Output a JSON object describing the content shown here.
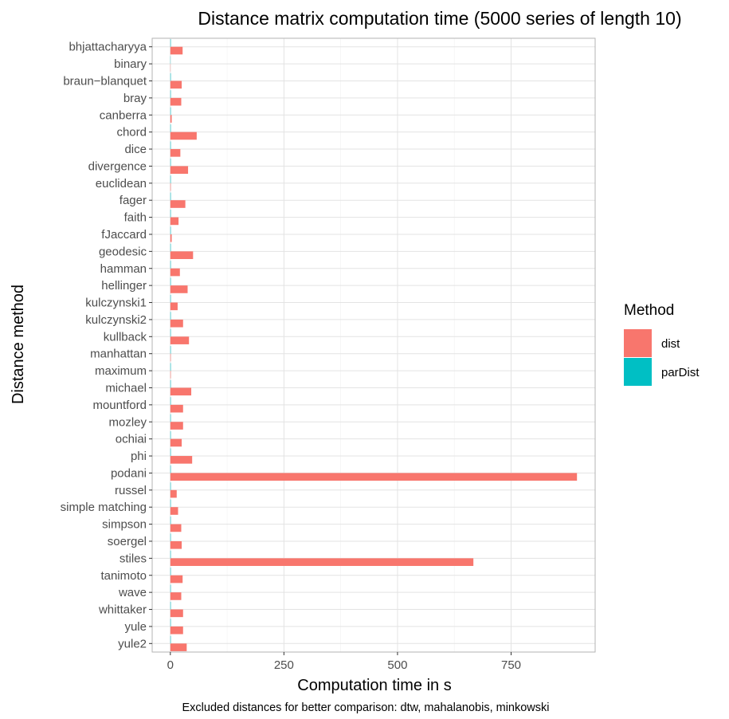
{
  "chart_data": {
    "type": "bar",
    "orientation": "horizontal",
    "title": "Distance matrix computation time (5000 series of length 10)",
    "xlabel": "Computation time in s",
    "ylabel": "Distance method",
    "caption": "Excluded distances for better comparison: dtw, mahalanobis, minkowski",
    "xlim": [
      -40,
      935
    ],
    "xticks": [
      0,
      250,
      500,
      750
    ],
    "xtick_labels": [
      "0",
      "250",
      "500",
      "750"
    ],
    "grid": true,
    "legend": {
      "title": "Method",
      "placement": "right",
      "items": [
        {
          "name": "dist",
          "color": "#F8766D"
        },
        {
          "name": "parDist",
          "color": "#00BFC4"
        }
      ]
    },
    "categories": [
      "bhjattacharyya",
      "binary",
      "braun−blanquet",
      "bray",
      "canberra",
      "chord",
      "dice",
      "divergence",
      "euclidean",
      "fager",
      "faith",
      "fJaccard",
      "geodesic",
      "hamman",
      "hellinger",
      "kulczynski1",
      "kulczynski2",
      "kullback",
      "manhattan",
      "maximum",
      "michael",
      "mountford",
      "mozley",
      "ochiai",
      "phi",
      "podani",
      "russel",
      "simple matching",
      "simpson",
      "soergel",
      "stiles",
      "tanimoto",
      "wave",
      "whittaker",
      "yule",
      "yule2"
    ],
    "series": [
      {
        "name": "dist",
        "color": "#F8766D",
        "values": [
          27,
          0.5,
          25,
          24,
          3,
          58,
          22,
          39,
          1,
          33,
          18,
          3,
          50,
          21,
          38,
          16,
          28,
          41,
          1,
          1,
          46,
          28,
          28,
          25,
          48,
          895,
          14,
          17,
          24,
          25,
          667,
          27,
          24,
          28,
          28,
          36
        ]
      },
      {
        "name": "parDist",
        "color": "#00BFC4",
        "values": [
          1,
          0.5,
          1,
          1,
          1,
          1,
          1,
          1,
          1,
          1,
          1,
          1,
          1,
          1,
          1,
          1,
          1,
          1,
          1,
          1,
          1,
          1,
          1,
          1,
          1,
          1,
          1,
          1,
          1,
          1,
          1,
          1,
          1,
          1,
          1,
          1
        ]
      }
    ]
  }
}
